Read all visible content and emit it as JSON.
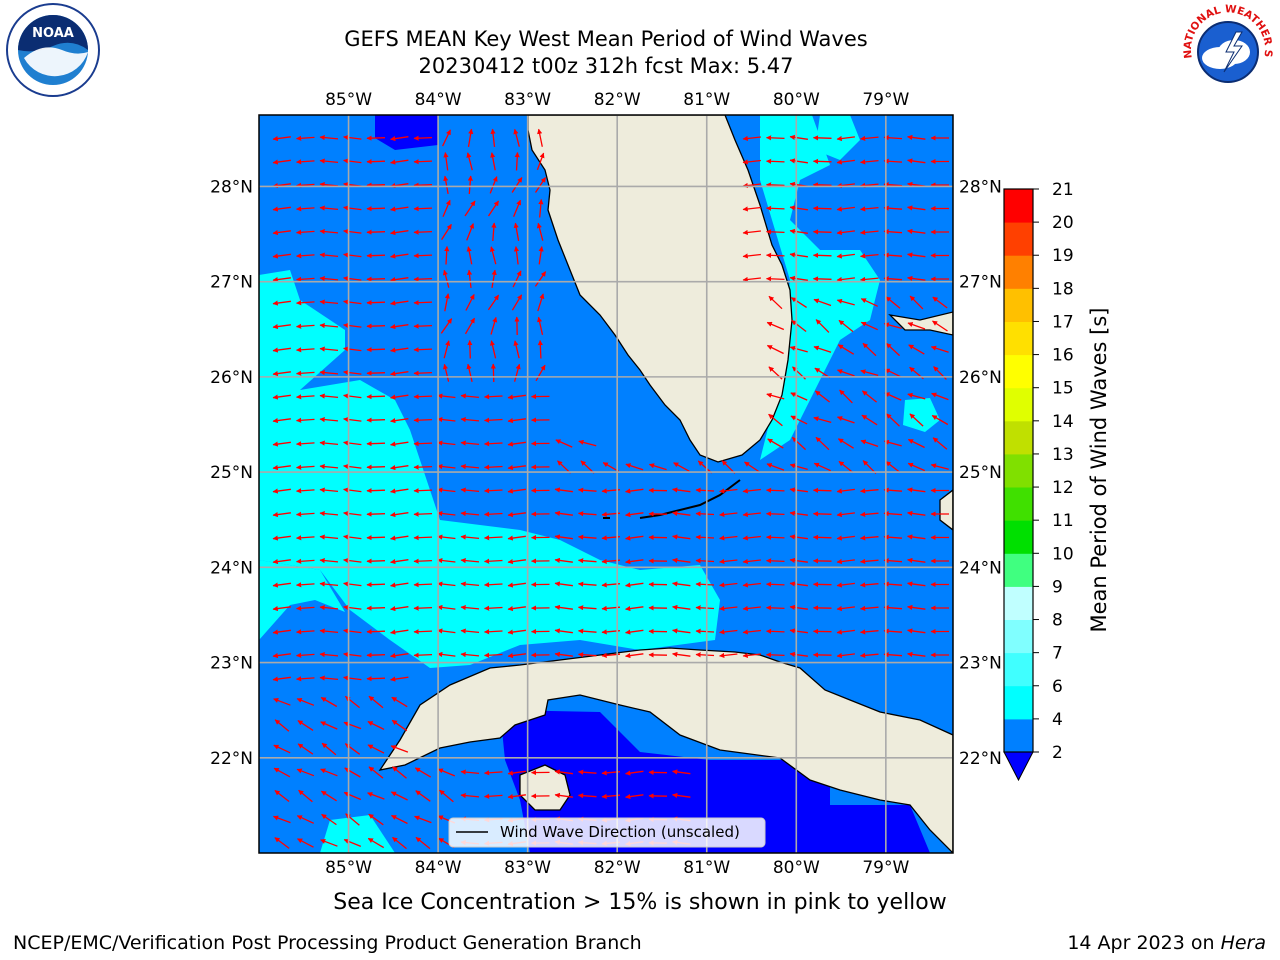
{
  "title_line1": "GEFS MEAN Key West Mean Period of Wind Waves",
  "title_line2": "20230412 t00z 312h fcst   Max: 5.47",
  "logos": {
    "left": {
      "icon": "noaa-logo",
      "text": "NOAA"
    },
    "right": {
      "icon": "nws-logo",
      "arc_text": "NATIONAL WEATHER SERVICE"
    }
  },
  "map": {
    "lon_labels": [
      "85°W",
      "84°W",
      "83°W",
      "82°W",
      "81°W",
      "80°W",
      "79°W"
    ],
    "lat_labels": [
      "28°N",
      "27°N",
      "26°N",
      "25°N",
      "24°N",
      "23°N",
      "22°N"
    ],
    "lon_range": [
      -86.0,
      -78.25
    ],
    "lat_range": [
      21.0,
      28.75
    ],
    "legend_label": "Wind Wave Direction (unscaled)",
    "arrow_color": "#ff0000",
    "land_color": "#eeecdc",
    "ocean_base_color": "#0080ff"
  },
  "colorbar": {
    "label": "Mean Period of Wind Waves [s]",
    "ticks": [
      "2",
      "4",
      "6",
      "7",
      "8",
      "9",
      "10",
      "11",
      "12",
      "13",
      "14",
      "15",
      "16",
      "17",
      "18",
      "19",
      "20",
      "21"
    ],
    "under_color": "#0000ff",
    "colors": [
      "#0080ff",
      "#00ffff",
      "#40ffff",
      "#80ffff",
      "#c0ffff",
      "#40ff80",
      "#00e000",
      "#40e000",
      "#80e000",
      "#c0e000",
      "#e0ff00",
      "#ffff00",
      "#ffe000",
      "#ffc000",
      "#ff8000",
      "#ff4000",
      "#ff0000"
    ]
  },
  "footer": {
    "ice_note": "Sea Ice Concentration > 15% is shown in pink to yellow",
    "credit": "NCEP/EMC/Verification Post Processing Product Generation Branch",
    "date": "14 Apr 2023 on ",
    "machine": "Hera"
  }
}
